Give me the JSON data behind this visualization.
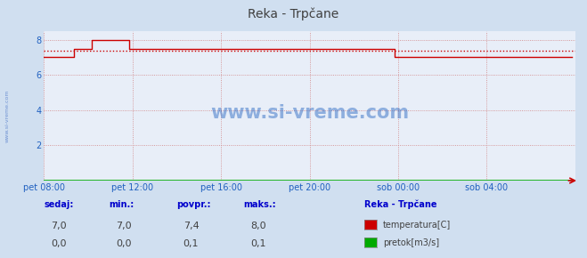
{
  "title": "Reka - Trpčane",
  "bg_color": "#d0dff0",
  "plot_bg_color": "#e8eef8",
  "grid_color": "#d08080",
  "grid_style": "dotted",
  "xlabel_color": "#2060c0",
  "ylabel_color": "#2060c0",
  "title_color": "#404040",
  "xlim": [
    0,
    288
  ],
  "ylim": [
    0,
    8.5
  ],
  "yticks": [
    2,
    4,
    6,
    8
  ],
  "xtick_labels": [
    "pet 08:00",
    "pet 12:00",
    "pet 16:00",
    "pet 20:00",
    "sob 00:00",
    "sob 04:00"
  ],
  "xtick_positions": [
    0,
    48,
    96,
    144,
    192,
    240
  ],
  "avg_line": 7.4,
  "temp_color": "#cc0000",
  "flow_color": "#00aa00",
  "watermark": "www.si-vreme.com",
  "watermark_color": "#2060c0",
  "legend_title": "Reka - Trpčane",
  "legend_items": [
    {
      "label": "temperatura[C]",
      "color": "#cc0000"
    },
    {
      "label": "pretok[m3/s]",
      "color": "#00aa00"
    }
  ],
  "stats_headers": [
    "sedaj:",
    "min.:",
    "povpr.:",
    "maks.:"
  ],
  "stats_temp": [
    "7,0",
    "7,0",
    "7,4",
    "8,0"
  ],
  "stats_flow": [
    "0,0",
    "0,0",
    "0,1",
    "0,1"
  ],
  "temp_data": [
    7.0,
    7.0,
    7.0,
    7.0,
    7.0,
    7.0,
    7.0,
    7.0,
    7.0,
    7.0,
    7.0,
    7.0,
    7.0,
    7.0,
    7.0,
    7.0,
    7.5,
    7.5,
    7.5,
    7.5,
    7.5,
    7.5,
    7.5,
    7.5,
    7.5,
    7.5,
    8.0,
    8.0,
    8.0,
    8.0,
    8.0,
    8.0,
    8.0,
    8.0,
    8.0,
    8.0,
    8.0,
    8.0,
    8.0,
    8.0,
    8.0,
    8.0,
    8.0,
    8.0,
    8.0,
    8.0,
    7.5,
    7.5,
    7.5,
    7.5,
    7.5,
    7.5,
    7.5,
    7.5,
    7.5,
    7.5,
    7.5,
    7.5,
    7.5,
    7.5,
    7.5,
    7.5,
    7.5,
    7.5,
    7.5,
    7.5,
    7.5,
    7.5,
    7.5,
    7.5,
    7.5,
    7.5,
    7.5,
    7.5,
    7.5,
    7.5,
    7.5,
    7.5,
    7.5,
    7.5,
    7.5,
    7.5,
    7.5,
    7.5,
    7.5,
    7.5,
    7.5,
    7.5,
    7.5,
    7.5,
    7.5,
    7.5,
    7.5,
    7.5,
    7.5,
    7.5,
    7.5,
    7.5,
    7.5,
    7.5,
    7.5,
    7.5,
    7.5,
    7.5,
    7.5,
    7.5,
    7.5,
    7.5,
    7.5,
    7.5,
    7.5,
    7.5,
    7.5,
    7.5,
    7.5,
    7.5,
    7.5,
    7.5,
    7.5,
    7.5,
    7.5,
    7.5,
    7.5,
    7.5,
    7.5,
    7.5,
    7.5,
    7.5,
    7.5,
    7.5,
    7.5,
    7.5,
    7.5,
    7.5,
    7.5,
    7.5,
    7.5,
    7.5,
    7.5,
    7.5,
    7.5,
    7.5,
    7.5,
    7.5,
    7.5,
    7.5,
    7.5,
    7.5,
    7.5,
    7.5,
    7.5,
    7.5,
    7.5,
    7.5,
    7.5,
    7.5,
    7.5,
    7.5,
    7.5,
    7.5,
    7.5,
    7.5,
    7.5,
    7.5,
    7.5,
    7.5,
    7.5,
    7.5,
    7.5,
    7.5,
    7.5,
    7.5,
    7.5,
    7.5,
    7.5,
    7.5,
    7.5,
    7.5,
    7.5,
    7.5,
    7.5,
    7.5,
    7.5,
    7.5,
    7.5,
    7.5,
    7.5,
    7.5,
    7.5,
    7.5,
    7.0,
    7.0,
    7.0,
    7.0,
    7.0,
    7.0,
    7.0,
    7.0,
    7.0,
    7.0,
    7.0,
    7.0,
    7.0,
    7.0,
    7.0,
    7.0,
    7.0,
    7.0,
    7.0,
    7.0,
    7.0,
    7.0,
    7.0,
    7.0,
    7.0,
    7.0,
    7.0,
    7.0,
    7.0,
    7.0,
    7.0,
    7.0,
    7.0,
    7.0,
    7.0,
    7.0,
    7.0,
    7.0,
    7.0,
    7.0,
    7.0,
    7.0,
    7.0,
    7.0,
    7.0,
    7.0,
    7.0,
    7.0,
    7.0,
    7.0,
    7.0,
    7.0,
    7.0,
    7.0,
    7.0,
    7.0,
    7.0,
    7.0,
    7.0,
    7.0,
    7.0,
    7.0,
    7.0,
    7.0,
    7.0,
    7.0,
    7.0,
    7.0,
    7.0,
    7.0,
    7.0,
    7.0,
    7.0,
    7.0,
    7.0,
    7.0,
    7.0,
    7.0,
    7.0,
    7.0,
    7.0,
    7.0,
    7.0,
    7.0,
    7.0,
    7.0,
    7.0,
    7.0,
    7.0,
    7.0,
    7.0,
    7.0,
    7.0,
    7.0,
    7.0,
    7.0,
    7.0
  ],
  "flow_data_val": 0.02
}
